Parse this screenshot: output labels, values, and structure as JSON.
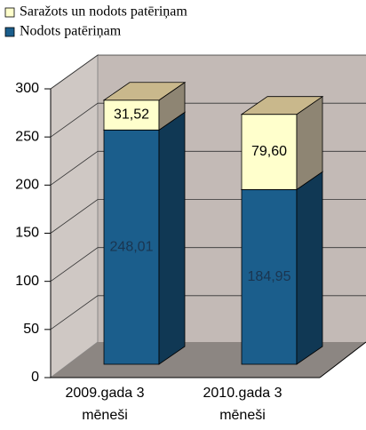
{
  "chart_data": {
    "type": "bar",
    "stacked": true,
    "three_d": true,
    "categories": [
      "2009.gada 3 mēneši",
      "2010.gada 3 mēneši"
    ],
    "series": [
      {
        "name": "Nodots patēriņam",
        "color": "#1b5e8c",
        "values": [
          248.01,
          184.95
        ],
        "value_labels": [
          "248,01",
          "184,95"
        ]
      },
      {
        "name": "Saražots un nodots patēriņam",
        "color": "#ffffcc",
        "values": [
          31.52,
          79.6
        ],
        "value_labels": [
          "31,52",
          "79,60"
        ]
      }
    ],
    "ylim": [
      0,
      300
    ],
    "yticks": [
      0,
      50,
      100,
      150,
      200,
      250,
      300
    ],
    "grid": true
  }
}
